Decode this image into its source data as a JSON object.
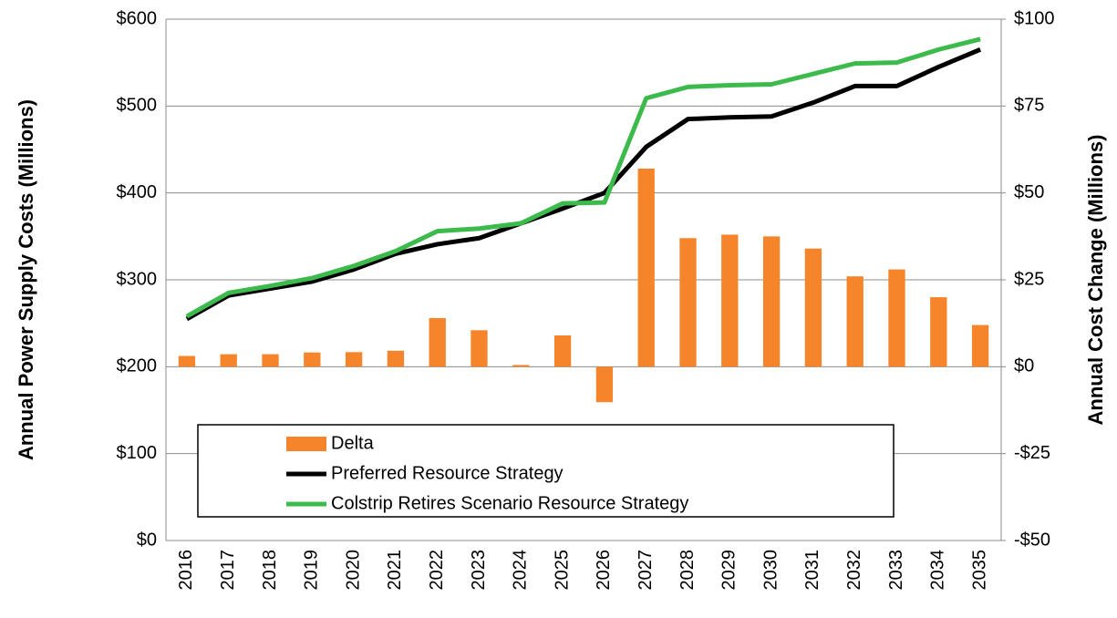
{
  "chart_data": {
    "type": "bar_line",
    "y_label": "Annual Power Supply Costs (Millions)",
    "y2_label": "Annual Cost Change (Millions)",
    "categories": [
      "2016",
      "2017",
      "2018",
      "2019",
      "2020",
      "2021",
      "2022",
      "2023",
      "2024",
      "2025",
      "2026",
      "2027",
      "2028",
      "2029",
      "2030",
      "2031",
      "2032",
      "2033",
      "2034",
      "2035"
    ],
    "series": [
      {
        "name": "Delta",
        "type": "bar",
        "axis": "y2",
        "color": "#f5842a",
        "values": [
          3.1,
          3.6,
          3.6,
          4.1,
          4.2,
          4.6,
          14,
          10.5,
          0.5,
          9,
          -10.2,
          57,
          37,
          38,
          37.5,
          34,
          26,
          28,
          20,
          12
        ]
      },
      {
        "name": "Preferred Resource Strategy",
        "type": "line",
        "color": "#000000",
        "values": [
          255,
          282,
          290,
          298,
          312,
          330,
          341,
          348,
          365,
          382,
          400,
          453,
          485,
          487,
          488,
          504,
          523,
          523,
          545,
          565
        ]
      },
      {
        "name": "Colstrip Retires Scenario Resource Strategy",
        "type": "line",
        "color": "#3dba4c",
        "values": [
          258,
          285,
          293,
          302,
          316,
          333,
          356,
          359,
          365,
          388,
          389,
          509,
          522,
          524,
          525,
          537,
          549,
          550,
          565,
          577
        ]
      }
    ],
    "ylim": [
      0,
      600
    ],
    "yticks": [
      {
        "value": 0,
        "label": "$0"
      },
      {
        "value": 100,
        "label": "$100"
      },
      {
        "value": 200,
        "label": "$200"
      },
      {
        "value": 300,
        "label": "$300"
      },
      {
        "value": 400,
        "label": "$400"
      },
      {
        "value": 500,
        "label": "$500"
      },
      {
        "value": 600,
        "label": "$600"
      }
    ],
    "y2lim": [
      -50,
      100
    ],
    "y2ticks": [
      {
        "value": -50,
        "label": "-$50"
      },
      {
        "value": -25,
        "label": "-$25"
      },
      {
        "value": 0,
        "label": "$0"
      },
      {
        "value": 25,
        "label": "$25"
      },
      {
        "value": 50,
        "label": "$50"
      },
      {
        "value": 75,
        "label": "$75"
      },
      {
        "value": 100,
        "label": "$100"
      }
    ],
    "grid": true
  }
}
